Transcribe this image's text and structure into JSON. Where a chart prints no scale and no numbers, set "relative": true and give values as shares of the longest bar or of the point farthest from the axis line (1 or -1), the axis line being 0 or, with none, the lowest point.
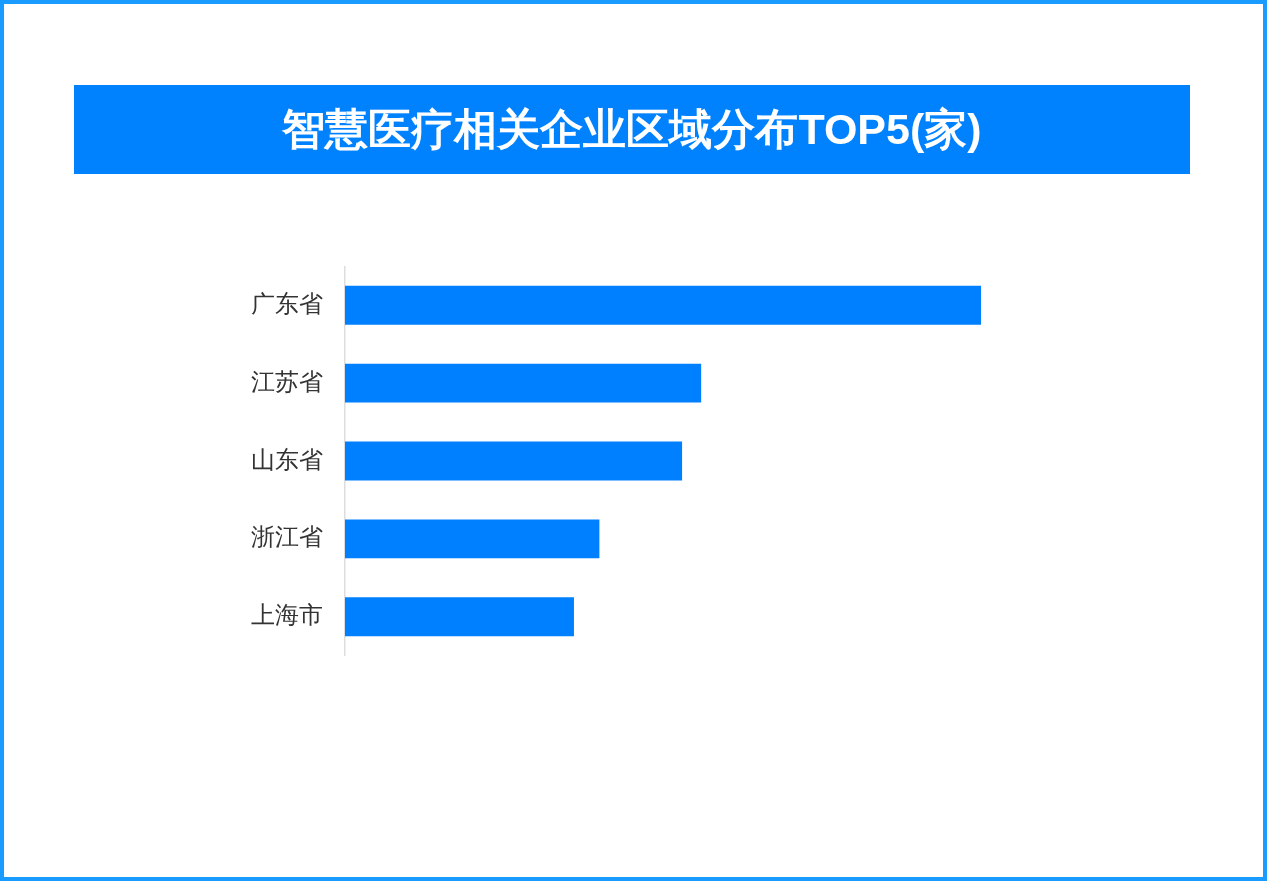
{
  "chart_data": {
    "type": "bar",
    "title": "智慧医疗相关企业区域分布TOP5(家)",
    "orientation": "horizontal",
    "relative": true,
    "categories": [
      "广东省",
      "江苏省",
      "山东省",
      "浙江省",
      "上海市"
    ],
    "values": [
      1,
      0.56,
      0.53,
      0.4,
      0.36
    ],
    "color": "#0080ff"
  }
}
